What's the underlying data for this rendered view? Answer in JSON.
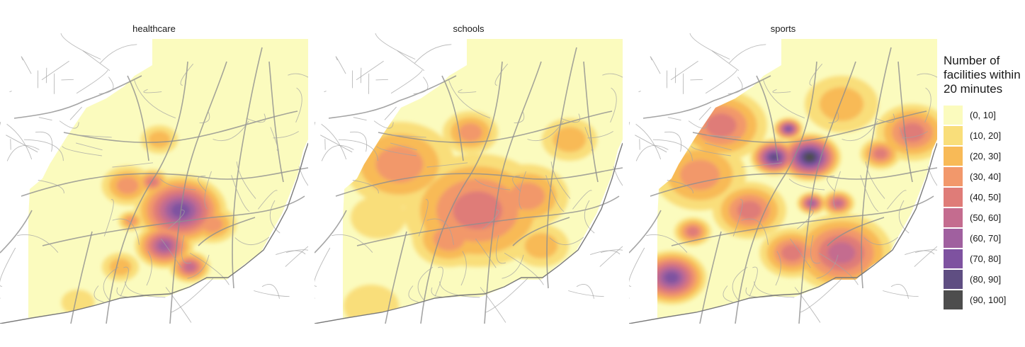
{
  "panels": [
    {
      "title": "healthcare",
      "profile": "healthcare"
    },
    {
      "title": "schools",
      "profile": "schools"
    },
    {
      "title": "sports",
      "profile": "sports"
    }
  ],
  "legend": {
    "title_lines": [
      "Number of",
      "facilities within",
      "20 minutes"
    ],
    "items": [
      {
        "label": "(0, 10]",
        "color": "#FBFBBE"
      },
      {
        "label": "(10, 20]",
        "color": "#F9DE7A"
      },
      {
        "label": "(20, 30]",
        "color": "#F8BA57"
      },
      {
        "label": "(30, 40]",
        "color": "#F2986B"
      },
      {
        "label": "(40, 50]",
        "color": "#DF7C78"
      },
      {
        "label": "(50, 60]",
        "color": "#C46C8F"
      },
      {
        "label": "(60, 70]",
        "color": "#A0609F"
      },
      {
        "label": "(70, 80]",
        "color": "#7E52A0"
      },
      {
        "label": "(80, 90]",
        "color": "#5F4E82"
      },
      {
        "label": "(90, 100]",
        "color": "#4D4D4D"
      }
    ]
  }
}
